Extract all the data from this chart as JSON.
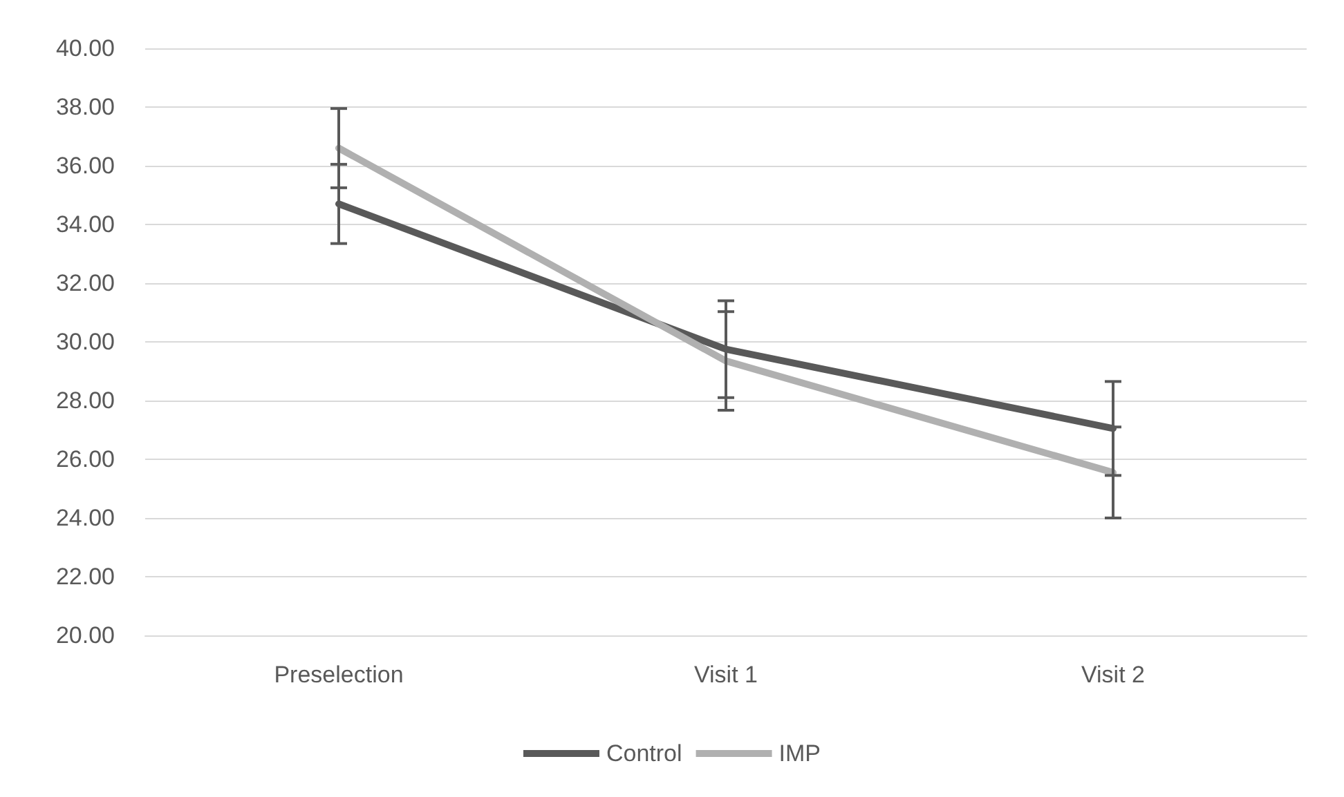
{
  "chart_data": {
    "type": "line",
    "categories": [
      "Preselection",
      "Visit 1",
      "Visit 2"
    ],
    "series": [
      {
        "name": "Control",
        "color": "#595959",
        "values": [
          34.7,
          29.75,
          27.05
        ],
        "errors": [
          1.35,
          1.65,
          1.6
        ]
      },
      {
        "name": "IMP",
        "color": "#b0b0b0",
        "values": [
          36.6,
          29.35,
          25.55
        ],
        "errors": [
          1.35,
          1.68,
          1.55
        ]
      }
    ],
    "ylim": [
      20,
      40
    ],
    "yticks": [
      {
        "value": 20,
        "label": "20.00"
      },
      {
        "value": 22,
        "label": "22.00"
      },
      {
        "value": 24,
        "label": "24.00"
      },
      {
        "value": 26,
        "label": "26.00"
      },
      {
        "value": 28,
        "label": "28.00"
      },
      {
        "value": 30,
        "label": "30.00"
      },
      {
        "value": 32,
        "label": "32.00"
      },
      {
        "value": 34,
        "label": "34.00"
      },
      {
        "value": 36,
        "label": "36.00"
      },
      {
        "value": 38,
        "label": "38.00"
      },
      {
        "value": 40,
        "label": "40.00"
      }
    ],
    "grid": "y",
    "legend": "bottom",
    "marker": "none",
    "line_style": "solid"
  }
}
